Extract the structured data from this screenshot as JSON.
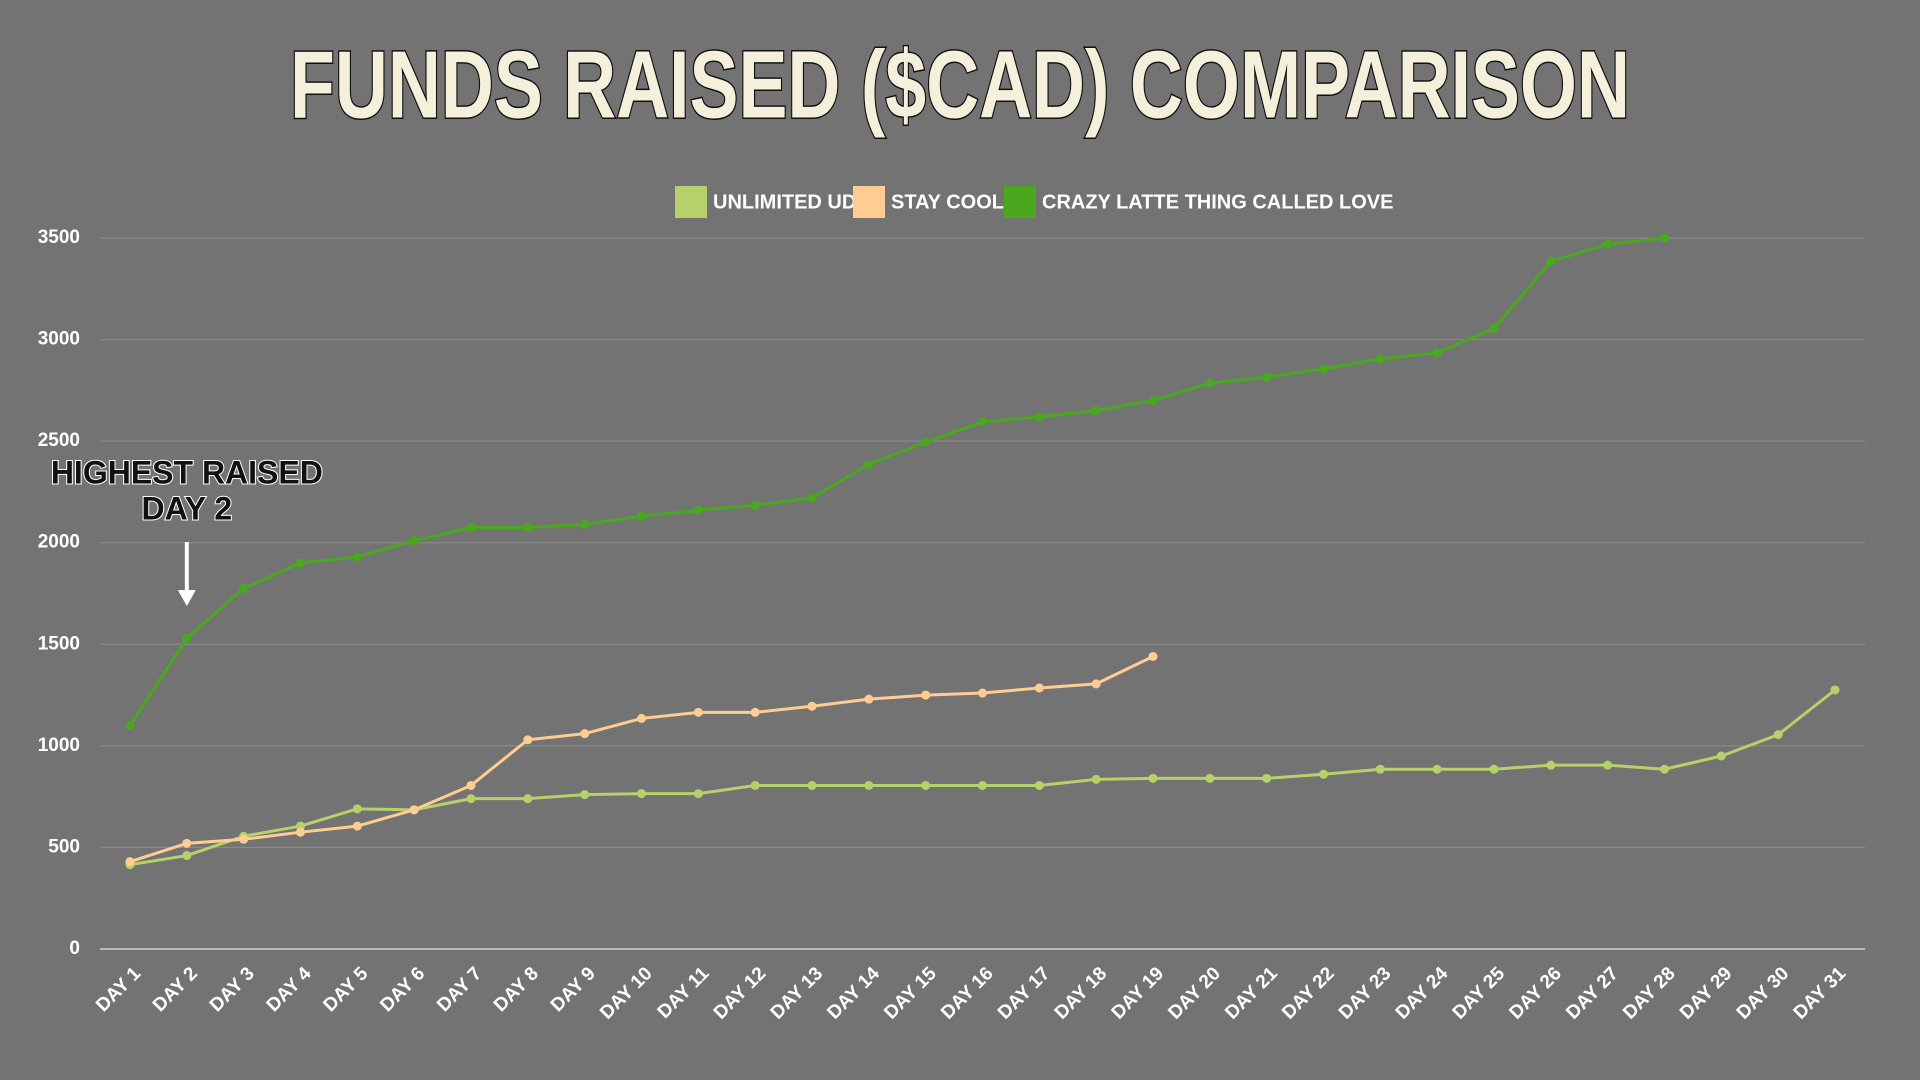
{
  "chart_data": {
    "type": "line",
    "title": "FUNDS RAISED ($CAD) COMPARISON",
    "annotation": [
      "HIGHEST RAISED",
      "DAY 2"
    ],
    "categories": [
      "DAY 1",
      "DAY 2",
      "DAY 3",
      "DAY 4",
      "DAY 5",
      "DAY 6",
      "DAY 7",
      "DAY 8",
      "DAY 9",
      "DAY 10",
      "DAY 11",
      "DAY 12",
      "DAY 13",
      "DAY 14",
      "DAY 15",
      "DAY 16",
      "DAY 17",
      "DAY 18",
      "DAY 19",
      "DAY 20",
      "DAY 21",
      "DAY 22",
      "DAY 23",
      "DAY 24",
      "DAY 25",
      "DAY 26",
      "DAY 27",
      "DAY 28",
      "DAY 29",
      "DAY 30",
      "DAY 31"
    ],
    "series": [
      {
        "name": "UNLIMITED UDO",
        "color": "#b7d16a",
        "values": [
          415,
          460,
          555,
          605,
          690,
          685,
          740,
          740,
          760,
          765,
          765,
          805,
          805,
          805,
          805,
          805,
          805,
          835,
          840,
          840,
          840,
          860,
          885,
          885,
          885,
          905,
          905,
          885,
          950,
          1055,
          1275
        ]
      },
      {
        "name": "STAY COOL",
        "color": "#ffcc92",
        "values": [
          430,
          520,
          540,
          575,
          605,
          685,
          805,
          1030,
          1060,
          1135,
          1165,
          1165,
          1195,
          1230,
          1250,
          1260,
          1285,
          1305,
          1440,
          null,
          null,
          null,
          null,
          null,
          null,
          null,
          null,
          null,
          null,
          null,
          null
        ]
      },
      {
        "name": "CRAZY LATTE THING CALLED LOVE",
        "color": "#4aa81f",
        "values": [
          1100,
          1530,
          1775,
          1900,
          1930,
          2010,
          2075,
          2075,
          2090,
          2130,
          2160,
          2185,
          2220,
          2385,
          2495,
          2595,
          2620,
          2650,
          2700,
          2785,
          2815,
          2855,
          2905,
          2935,
          3055,
          3385,
          3470,
          3500,
          null,
          null,
          null
        ]
      }
    ],
    "ylim": [
      0,
      3500
    ],
    "yticks": [
      0,
      500,
      1000,
      1500,
      2000,
      2500,
      3000,
      3500
    ],
    "grid": true,
    "legend": "top"
  }
}
